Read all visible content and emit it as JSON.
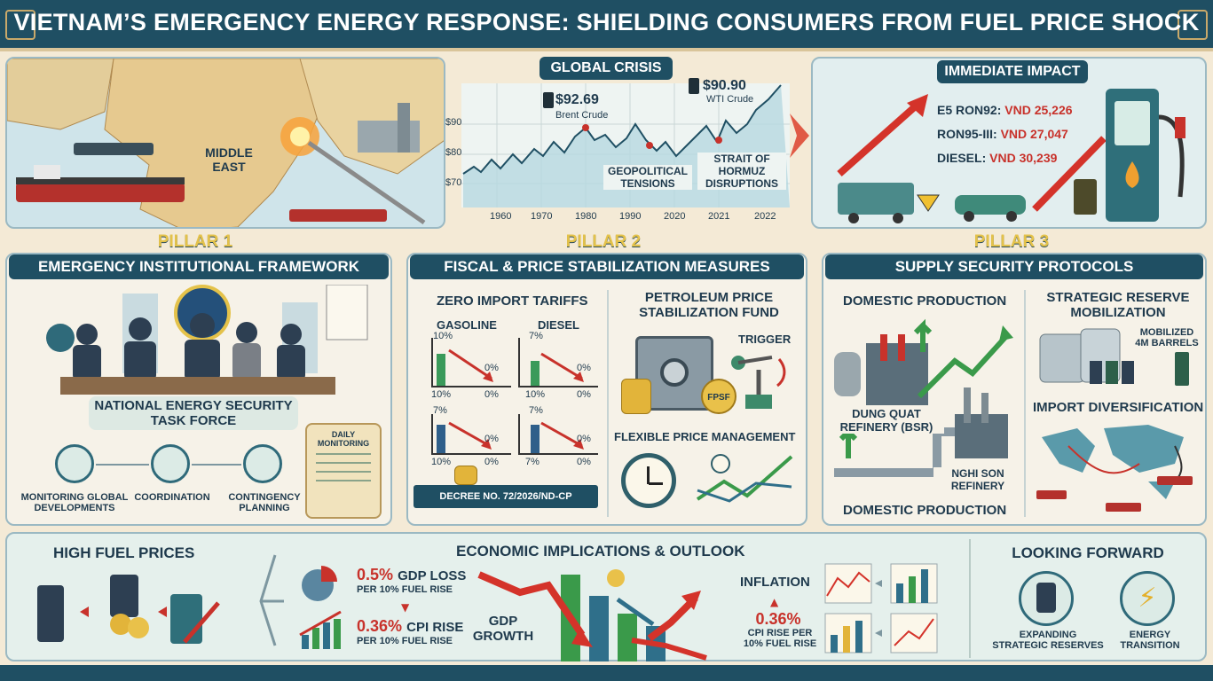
{
  "title": "VIETNAM’S EMERGENCY ENERGY RESPONSE: SHIELDING CONSUMERS FROM FUEL PRICE SHOCK",
  "map": {
    "region_label_1": "MIDDLE",
    "region_label_2": "EAST"
  },
  "global_crisis": {
    "caption": "GLOBAL CRISIS",
    "brent_value": "$92.69",
    "brent_label": "Brent Crude",
    "wti_value": "$90.90",
    "wti_label": "WTI Crude",
    "annot_1_line1": "GEOPOLITICAL",
    "annot_1_line2": "TENSIONS",
    "annot_2_line1": "STRAIT OF",
    "annot_2_line2": "HORMUZ",
    "annot_2_line3": "DISRUPTIONS",
    "y_ticks": [
      "$90",
      "$80",
      "$70"
    ],
    "x_ticks": [
      "1960",
      "1970",
      "1980",
      "1990",
      "2020",
      "2021",
      "2022"
    ]
  },
  "immediate_impact": {
    "caption": "IMMEDIATE IMPACT",
    "prices": [
      {
        "name": "E5 RON92:",
        "value": "VND 25,226"
      },
      {
        "name": "RON95-III:",
        "value": "VND 27,047"
      },
      {
        "name": "DIESEL:",
        "value": "VND 30,239"
      }
    ]
  },
  "pillar1": {
    "head": "PILLAR 1",
    "title": "EMERGENCY INSTITUTIONAL FRAMEWORK",
    "task_force_line1": "NATIONAL ENERGY SECURITY",
    "task_force_line2": "TASK FORCE",
    "items": [
      {
        "line1": "MONITORING GLOBAL",
        "line2": "DEVELOPMENTS"
      },
      {
        "line1": "COORDINATION",
        "line2": ""
      },
      {
        "line1": "CONTINGENCY",
        "line2": "PLANNING"
      }
    ],
    "scroll_line1": "DAILY",
    "scroll_line2": "MONITORING"
  },
  "pillar2": {
    "head": "PILLAR 2",
    "title": "FISCAL & PRICE STABILIZATION MEASURES",
    "tariffs_title": "ZERO IMPORT TARIFFS",
    "gasoline_label": "GASOLINE",
    "diesel_label": "DIESEL",
    "mini_charts": [
      {
        "top": "10%",
        "end": "0%",
        "bl": "10%",
        "br": "0%"
      },
      {
        "top": "7%",
        "end": "0%",
        "bl": "10%",
        "br": "0%"
      },
      {
        "top": "7%",
        "end": "0%",
        "bl": "10%",
        "br": "0%"
      },
      {
        "top": "7%",
        "end": "0%",
        "bl": "7%",
        "br": "0%"
      }
    ],
    "decree": "DECREE NO. 72/2026/ND-CP",
    "fund_line1": "PETROLEUM PRICE",
    "fund_line2": "STABILIZATION FUND",
    "trigger": "TRIGGER",
    "fpsf": "FPSF",
    "flexible": "FLEXIBLE PRICE MANAGEMENT"
  },
  "pillar3": {
    "head": "PILLAR 3",
    "title": "SUPPLY SECURITY PROTOCOLS",
    "domestic_top": "DOMESTIC PRODUCTION",
    "domestic_bottom": "DOMESTIC PRODUCTION",
    "dung_quat_line1": "DUNG QUAT",
    "dung_quat_line2": "REFINERY (BSR)",
    "nghi_son_line1": "NGHI SON",
    "nghi_son_line2": "REFINERY",
    "reserve_line1": "STRATEGIC RESERVE",
    "reserve_line2": "MOBILIZATION",
    "mobilized_line1": "MOBILIZED",
    "mobilized_line2": "4M BARRELS",
    "import_div": "IMPORT DIVERSIFICATION"
  },
  "bottom": {
    "high_fuel": "HIGH FUEL PRICES",
    "econ_title": "ECONOMIC IMPLICATIONS & OUTLOOK",
    "gdp_value": "0.5%",
    "gdp_text": "GDP LOSS",
    "gdp_sub": "PER 10% FUEL RISE",
    "cpi_value": "0.36%",
    "cpi_text": "CPI RISE",
    "cpi_sub": "PER 10% FUEL RISE",
    "gdp_growth_line1": "GDP",
    "gdp_growth_line2": "GROWTH",
    "inflation": "INFLATION",
    "infl_value": "0.36%",
    "infl_line1": "CPI RISE PER",
    "infl_line2": "10% FUEL RISE",
    "looking_forward": "LOOKING FORWARD",
    "lf_items": [
      {
        "line1": "EXPANDING",
        "line2": "STRATEGIC RESERVES"
      },
      {
        "line1": "ENERGY",
        "line2": "TRANSITION"
      }
    ]
  },
  "colors": {
    "navy": "#1f4f63",
    "red": "#c8322b",
    "gold": "#e4c24a",
    "green": "#3a9a4a"
  }
}
